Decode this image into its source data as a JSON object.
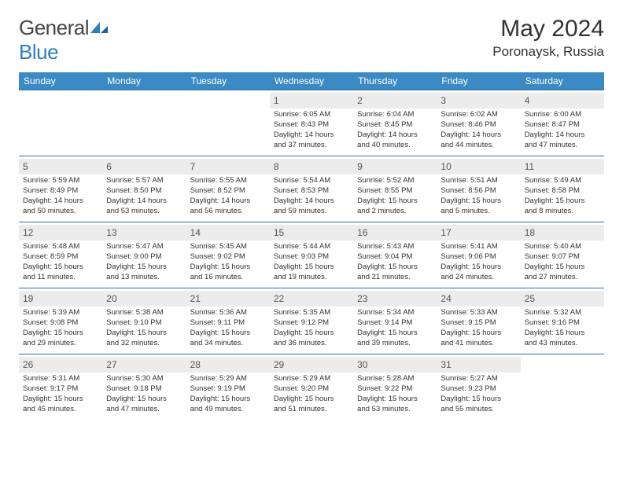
{
  "brand": {
    "first": "General",
    "second": "Blue"
  },
  "title": "May 2024",
  "location": "Poronaysk, Russia",
  "colors": {
    "header_bg": "#3b8ac4",
    "header_text": "#ffffff",
    "row_border": "#2f6fa8",
    "day_num_bg": "#ececec",
    "logo_accent": "#2f7fbf"
  },
  "weekdays": [
    "Sunday",
    "Monday",
    "Tuesday",
    "Wednesday",
    "Thursday",
    "Friday",
    "Saturday"
  ],
  "weeks": [
    [
      {
        "n": "",
        "sunrise": "",
        "sunset": "",
        "daylight1": "",
        "daylight2": ""
      },
      {
        "n": "",
        "sunrise": "",
        "sunset": "",
        "daylight1": "",
        "daylight2": ""
      },
      {
        "n": "",
        "sunrise": "",
        "sunset": "",
        "daylight1": "",
        "daylight2": ""
      },
      {
        "n": "1",
        "sunrise": "Sunrise: 6:05 AM",
        "sunset": "Sunset: 8:43 PM",
        "daylight1": "Daylight: 14 hours",
        "daylight2": "and 37 minutes."
      },
      {
        "n": "2",
        "sunrise": "Sunrise: 6:04 AM",
        "sunset": "Sunset: 8:45 PM",
        "daylight1": "Daylight: 14 hours",
        "daylight2": "and 40 minutes."
      },
      {
        "n": "3",
        "sunrise": "Sunrise: 6:02 AM",
        "sunset": "Sunset: 8:46 PM",
        "daylight1": "Daylight: 14 hours",
        "daylight2": "and 44 minutes."
      },
      {
        "n": "4",
        "sunrise": "Sunrise: 6:00 AM",
        "sunset": "Sunset: 8:47 PM",
        "daylight1": "Daylight: 14 hours",
        "daylight2": "and 47 minutes."
      }
    ],
    [
      {
        "n": "5",
        "sunrise": "Sunrise: 5:59 AM",
        "sunset": "Sunset: 8:49 PM",
        "daylight1": "Daylight: 14 hours",
        "daylight2": "and 50 minutes."
      },
      {
        "n": "6",
        "sunrise": "Sunrise: 5:57 AM",
        "sunset": "Sunset: 8:50 PM",
        "daylight1": "Daylight: 14 hours",
        "daylight2": "and 53 minutes."
      },
      {
        "n": "7",
        "sunrise": "Sunrise: 5:55 AM",
        "sunset": "Sunset: 8:52 PM",
        "daylight1": "Daylight: 14 hours",
        "daylight2": "and 56 minutes."
      },
      {
        "n": "8",
        "sunrise": "Sunrise: 5:54 AM",
        "sunset": "Sunset: 8:53 PM",
        "daylight1": "Daylight: 14 hours",
        "daylight2": "and 59 minutes."
      },
      {
        "n": "9",
        "sunrise": "Sunrise: 5:52 AM",
        "sunset": "Sunset: 8:55 PM",
        "daylight1": "Daylight: 15 hours",
        "daylight2": "and 2 minutes."
      },
      {
        "n": "10",
        "sunrise": "Sunrise: 5:51 AM",
        "sunset": "Sunset: 8:56 PM",
        "daylight1": "Daylight: 15 hours",
        "daylight2": "and 5 minutes."
      },
      {
        "n": "11",
        "sunrise": "Sunrise: 5:49 AM",
        "sunset": "Sunset: 8:58 PM",
        "daylight1": "Daylight: 15 hours",
        "daylight2": "and 8 minutes."
      }
    ],
    [
      {
        "n": "12",
        "sunrise": "Sunrise: 5:48 AM",
        "sunset": "Sunset: 8:59 PM",
        "daylight1": "Daylight: 15 hours",
        "daylight2": "and 11 minutes."
      },
      {
        "n": "13",
        "sunrise": "Sunrise: 5:47 AM",
        "sunset": "Sunset: 9:00 PM",
        "daylight1": "Daylight: 15 hours",
        "daylight2": "and 13 minutes."
      },
      {
        "n": "14",
        "sunrise": "Sunrise: 5:45 AM",
        "sunset": "Sunset: 9:02 PM",
        "daylight1": "Daylight: 15 hours",
        "daylight2": "and 16 minutes."
      },
      {
        "n": "15",
        "sunrise": "Sunrise: 5:44 AM",
        "sunset": "Sunset: 9:03 PM",
        "daylight1": "Daylight: 15 hours",
        "daylight2": "and 19 minutes."
      },
      {
        "n": "16",
        "sunrise": "Sunrise: 5:43 AM",
        "sunset": "Sunset: 9:04 PM",
        "daylight1": "Daylight: 15 hours",
        "daylight2": "and 21 minutes."
      },
      {
        "n": "17",
        "sunrise": "Sunrise: 5:41 AM",
        "sunset": "Sunset: 9:06 PM",
        "daylight1": "Daylight: 15 hours",
        "daylight2": "and 24 minutes."
      },
      {
        "n": "18",
        "sunrise": "Sunrise: 5:40 AM",
        "sunset": "Sunset: 9:07 PM",
        "daylight1": "Daylight: 15 hours",
        "daylight2": "and 27 minutes."
      }
    ],
    [
      {
        "n": "19",
        "sunrise": "Sunrise: 5:39 AM",
        "sunset": "Sunset: 9:08 PM",
        "daylight1": "Daylight: 15 hours",
        "daylight2": "and 29 minutes."
      },
      {
        "n": "20",
        "sunrise": "Sunrise: 5:38 AM",
        "sunset": "Sunset: 9:10 PM",
        "daylight1": "Daylight: 15 hours",
        "daylight2": "and 32 minutes."
      },
      {
        "n": "21",
        "sunrise": "Sunrise: 5:36 AM",
        "sunset": "Sunset: 9:11 PM",
        "daylight1": "Daylight: 15 hours",
        "daylight2": "and 34 minutes."
      },
      {
        "n": "22",
        "sunrise": "Sunrise: 5:35 AM",
        "sunset": "Sunset: 9:12 PM",
        "daylight1": "Daylight: 15 hours",
        "daylight2": "and 36 minutes."
      },
      {
        "n": "23",
        "sunrise": "Sunrise: 5:34 AM",
        "sunset": "Sunset: 9:14 PM",
        "daylight1": "Daylight: 15 hours",
        "daylight2": "and 39 minutes."
      },
      {
        "n": "24",
        "sunrise": "Sunrise: 5:33 AM",
        "sunset": "Sunset: 9:15 PM",
        "daylight1": "Daylight: 15 hours",
        "daylight2": "and 41 minutes."
      },
      {
        "n": "25",
        "sunrise": "Sunrise: 5:32 AM",
        "sunset": "Sunset: 9:16 PM",
        "daylight1": "Daylight: 15 hours",
        "daylight2": "and 43 minutes."
      }
    ],
    [
      {
        "n": "26",
        "sunrise": "Sunrise: 5:31 AM",
        "sunset": "Sunset: 9:17 PM",
        "daylight1": "Daylight: 15 hours",
        "daylight2": "and 45 minutes."
      },
      {
        "n": "27",
        "sunrise": "Sunrise: 5:30 AM",
        "sunset": "Sunset: 9:18 PM",
        "daylight1": "Daylight: 15 hours",
        "daylight2": "and 47 minutes."
      },
      {
        "n": "28",
        "sunrise": "Sunrise: 5:29 AM",
        "sunset": "Sunset: 9:19 PM",
        "daylight1": "Daylight: 15 hours",
        "daylight2": "and 49 minutes."
      },
      {
        "n": "29",
        "sunrise": "Sunrise: 5:29 AM",
        "sunset": "Sunset: 9:20 PM",
        "daylight1": "Daylight: 15 hours",
        "daylight2": "and 51 minutes."
      },
      {
        "n": "30",
        "sunrise": "Sunrise: 5:28 AM",
        "sunset": "Sunset: 9:22 PM",
        "daylight1": "Daylight: 15 hours",
        "daylight2": "and 53 minutes."
      },
      {
        "n": "31",
        "sunrise": "Sunrise: 5:27 AM",
        "sunset": "Sunset: 9:23 PM",
        "daylight1": "Daylight: 15 hours",
        "daylight2": "and 55 minutes."
      },
      {
        "n": "",
        "sunrise": "",
        "sunset": "",
        "daylight1": "",
        "daylight2": ""
      }
    ]
  ]
}
